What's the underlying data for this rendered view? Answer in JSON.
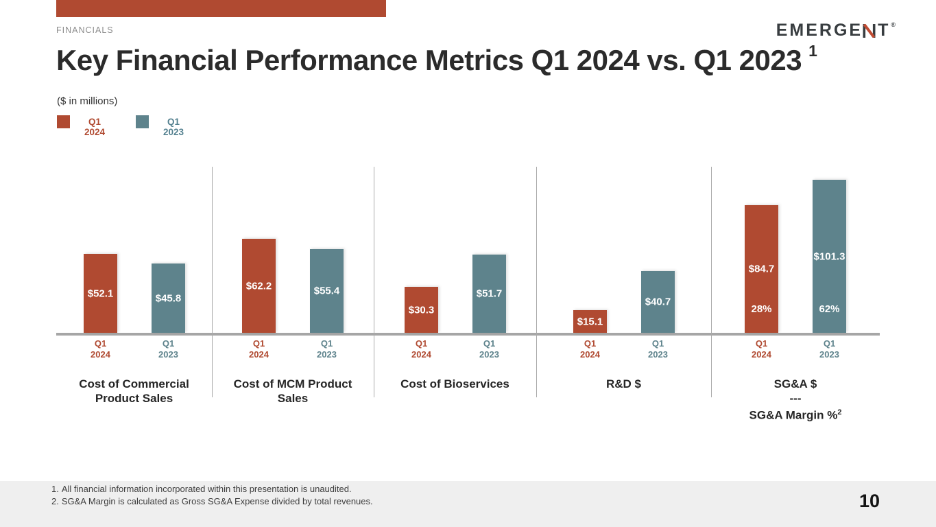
{
  "slide": {
    "eyebrow": "FINANCIALS",
    "title": "Key Financial Performance Metrics Q1 2024 vs. Q1 2023",
    "title_superscript": "1",
    "units_note": "($ in millions)",
    "accent_color": "#b04a31",
    "logo": {
      "text": "EMERGENT",
      "mark": "®"
    },
    "page_number": "10",
    "footnotes": [
      {
        "num": "1.",
        "text": "All financial information incorporated within this presentation is unaudited."
      },
      {
        "num": "2.",
        "text": "SG&A Margin is calculated as Gross SG&A Expense divided by total revenues."
      }
    ]
  },
  "legend": {
    "items": [
      {
        "line1": "Q1",
        "line2": "2024",
        "color": "#b04a31"
      },
      {
        "line1": "Q1",
        "line2": "2023",
        "color": "#5e838c"
      }
    ]
  },
  "chart_data": {
    "type": "bar",
    "title": "Key Financial Performance Metrics Q1 2024 vs. Q1 2023",
    "unit": "$ in millions",
    "categories": [
      "Cost of Commercial Product Sales",
      "Cost of MCM Product Sales",
      "Cost of Bioservices",
      "R&D $",
      "SG&A $ --- SG&A Margin %"
    ],
    "series": [
      {
        "name": "Q1 2024",
        "color": "#b04a31",
        "values": [
          52.1,
          62.2,
          30.3,
          15.1,
          84.7
        ]
      },
      {
        "name": "Q1 2023",
        "color": "#5e838c",
        "values": [
          45.8,
          55.4,
          51.7,
          40.7,
          101.3
        ]
      }
    ],
    "sga_margin": {
      "q1_2024": "28%",
      "q1_2023": "62%"
    },
    "ylim": [
      0,
      110
    ],
    "grid": false,
    "legend_position": "top-left",
    "x_tick_lines": [
      [
        "Q1",
        "2024"
      ],
      [
        "Q1",
        "2023"
      ]
    ],
    "axis": {
      "baseline_color": "#a6a6a6",
      "separator_color": "#a9a9a9"
    },
    "groups": [
      {
        "title_lines": [
          "Cost of Commercial",
          "Product Sales"
        ],
        "bars": [
          {
            "label": "$52.1",
            "value": 52.1
          },
          {
            "label": "$45.8",
            "value": 45.8
          }
        ]
      },
      {
        "title_lines": [
          "Cost of MCM Product",
          "Sales"
        ],
        "bars": [
          {
            "label": "$62.2",
            "value": 62.2
          },
          {
            "label": "$55.4",
            "value": 55.4
          }
        ]
      },
      {
        "title_lines": [
          "Cost of Bioservices"
        ],
        "bars": [
          {
            "label": "$30.3",
            "value": 30.3
          },
          {
            "label": "$51.7",
            "value": 51.7
          }
        ]
      },
      {
        "title_lines": [
          "R&D $"
        ],
        "bars": [
          {
            "label": "$15.1",
            "value": 15.1
          },
          {
            "label": "$40.7",
            "value": 40.7
          }
        ]
      },
      {
        "title_lines": [
          "SG&A $",
          "---",
          "SG&A Margin %"
        ],
        "title_sup": "2",
        "bars": [
          {
            "label": "$84.7",
            "value": 84.7,
            "sub_label": "28%"
          },
          {
            "label": "$101.3",
            "value": 101.3,
            "sub_label": "62%"
          }
        ]
      }
    ]
  }
}
